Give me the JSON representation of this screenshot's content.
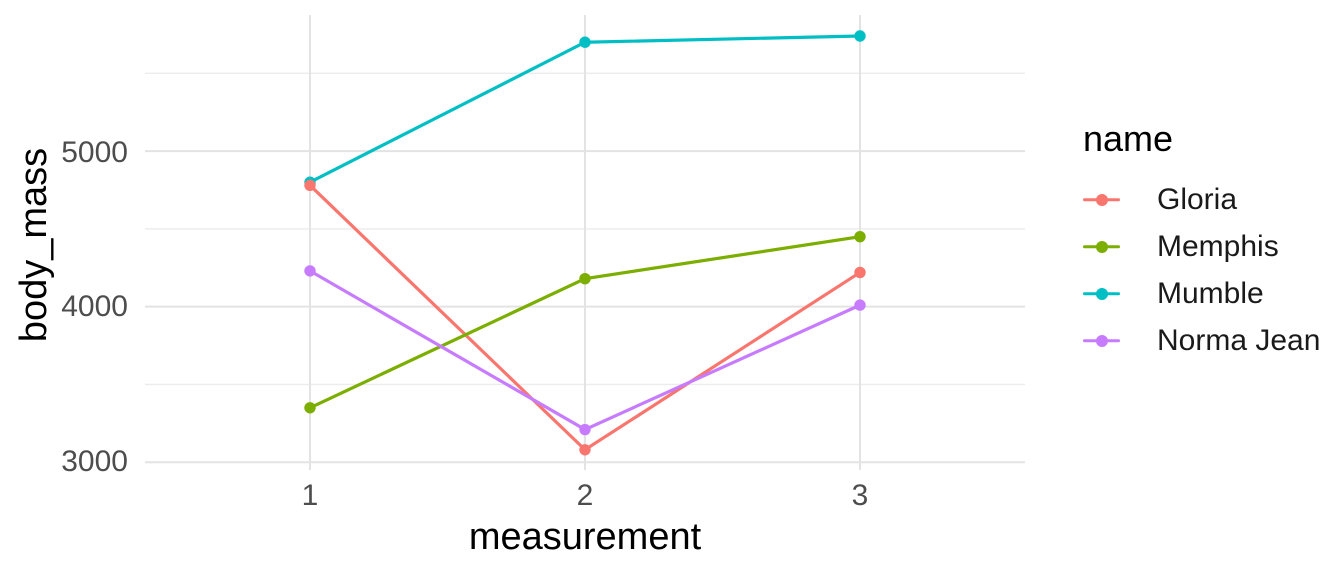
{
  "chart_data": {
    "type": "line",
    "title": "",
    "xlabel": "measurement",
    "ylabel": "body_mass",
    "x": [
      1,
      2,
      3
    ],
    "x_tick_labels": [
      "1",
      "2",
      "3"
    ],
    "y_tick_labels": [
      "5000",
      "4000",
      "3000"
    ],
    "y_ticks": [
      3000,
      4000,
      5000
    ],
    "y_minor_ticks": [
      3500,
      4500,
      5500
    ],
    "xlim": [
      0.4,
      3.6
    ],
    "ylim": [
      2950,
      5875
    ],
    "grid": true,
    "legend": {
      "title": "name",
      "position": "right"
    },
    "series": [
      {
        "name": "Gloria",
        "color": "#F8766D",
        "values": [
          4780,
          3080,
          4220
        ]
      },
      {
        "name": "Memphis",
        "color": "#7CAE00",
        "values": [
          3350,
          4180,
          4450
        ]
      },
      {
        "name": "Mumble",
        "color": "#00BFC4",
        "values": [
          4800,
          5700,
          5740
        ]
      },
      {
        "name": "Norma Jean",
        "color": "#C77CFF",
        "values": [
          4230,
          3210,
          4010
        ]
      }
    ],
    "draw_order": [
      "Mumble",
      "Gloria",
      "Memphis",
      "Norma Jean"
    ],
    "background": "#FFFFFF",
    "grid_color_major": "#E3E3E3",
    "grid_color_minor": "#ECECEC",
    "tick_label_color": "#4D4D4D",
    "axis_title_color": "#000000",
    "line_width": 3.2,
    "point_radius": 5.7
  }
}
